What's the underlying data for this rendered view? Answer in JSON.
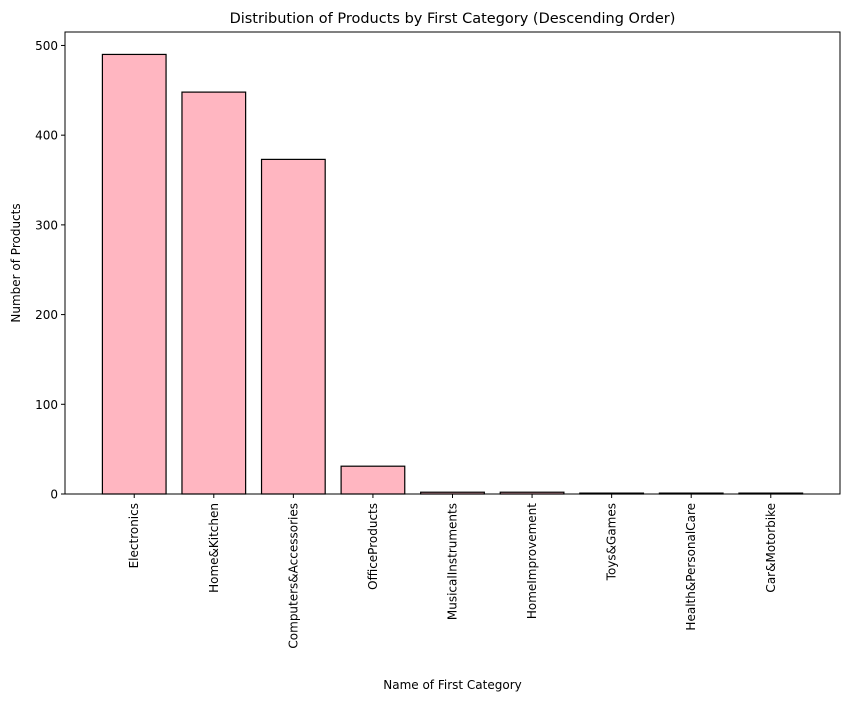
{
  "chart_data": {
    "type": "bar",
    "title": "Distribution of Products by First Category (Descending Order)",
    "xlabel": "Name of First Category",
    "ylabel": "Number of Products",
    "categories": [
      "Electronics",
      "Home&Kitchen",
      "Computers&Accessories",
      "OfficeProducts",
      "MusicalInstruments",
      "HomeImprovement",
      "Toys&Games",
      "Health&PersonalCare",
      "Car&Motorbike"
    ],
    "values": [
      490,
      448,
      373,
      31,
      2,
      2,
      1,
      1,
      1
    ],
    "ylim": [
      0,
      515
    ],
    "yticks": [
      0,
      100,
      200,
      300,
      400,
      500
    ],
    "grid": false,
    "colors": {
      "bar_fill": "#ffb6c1",
      "bar_edge": "#000000",
      "axis": "#000000"
    }
  }
}
